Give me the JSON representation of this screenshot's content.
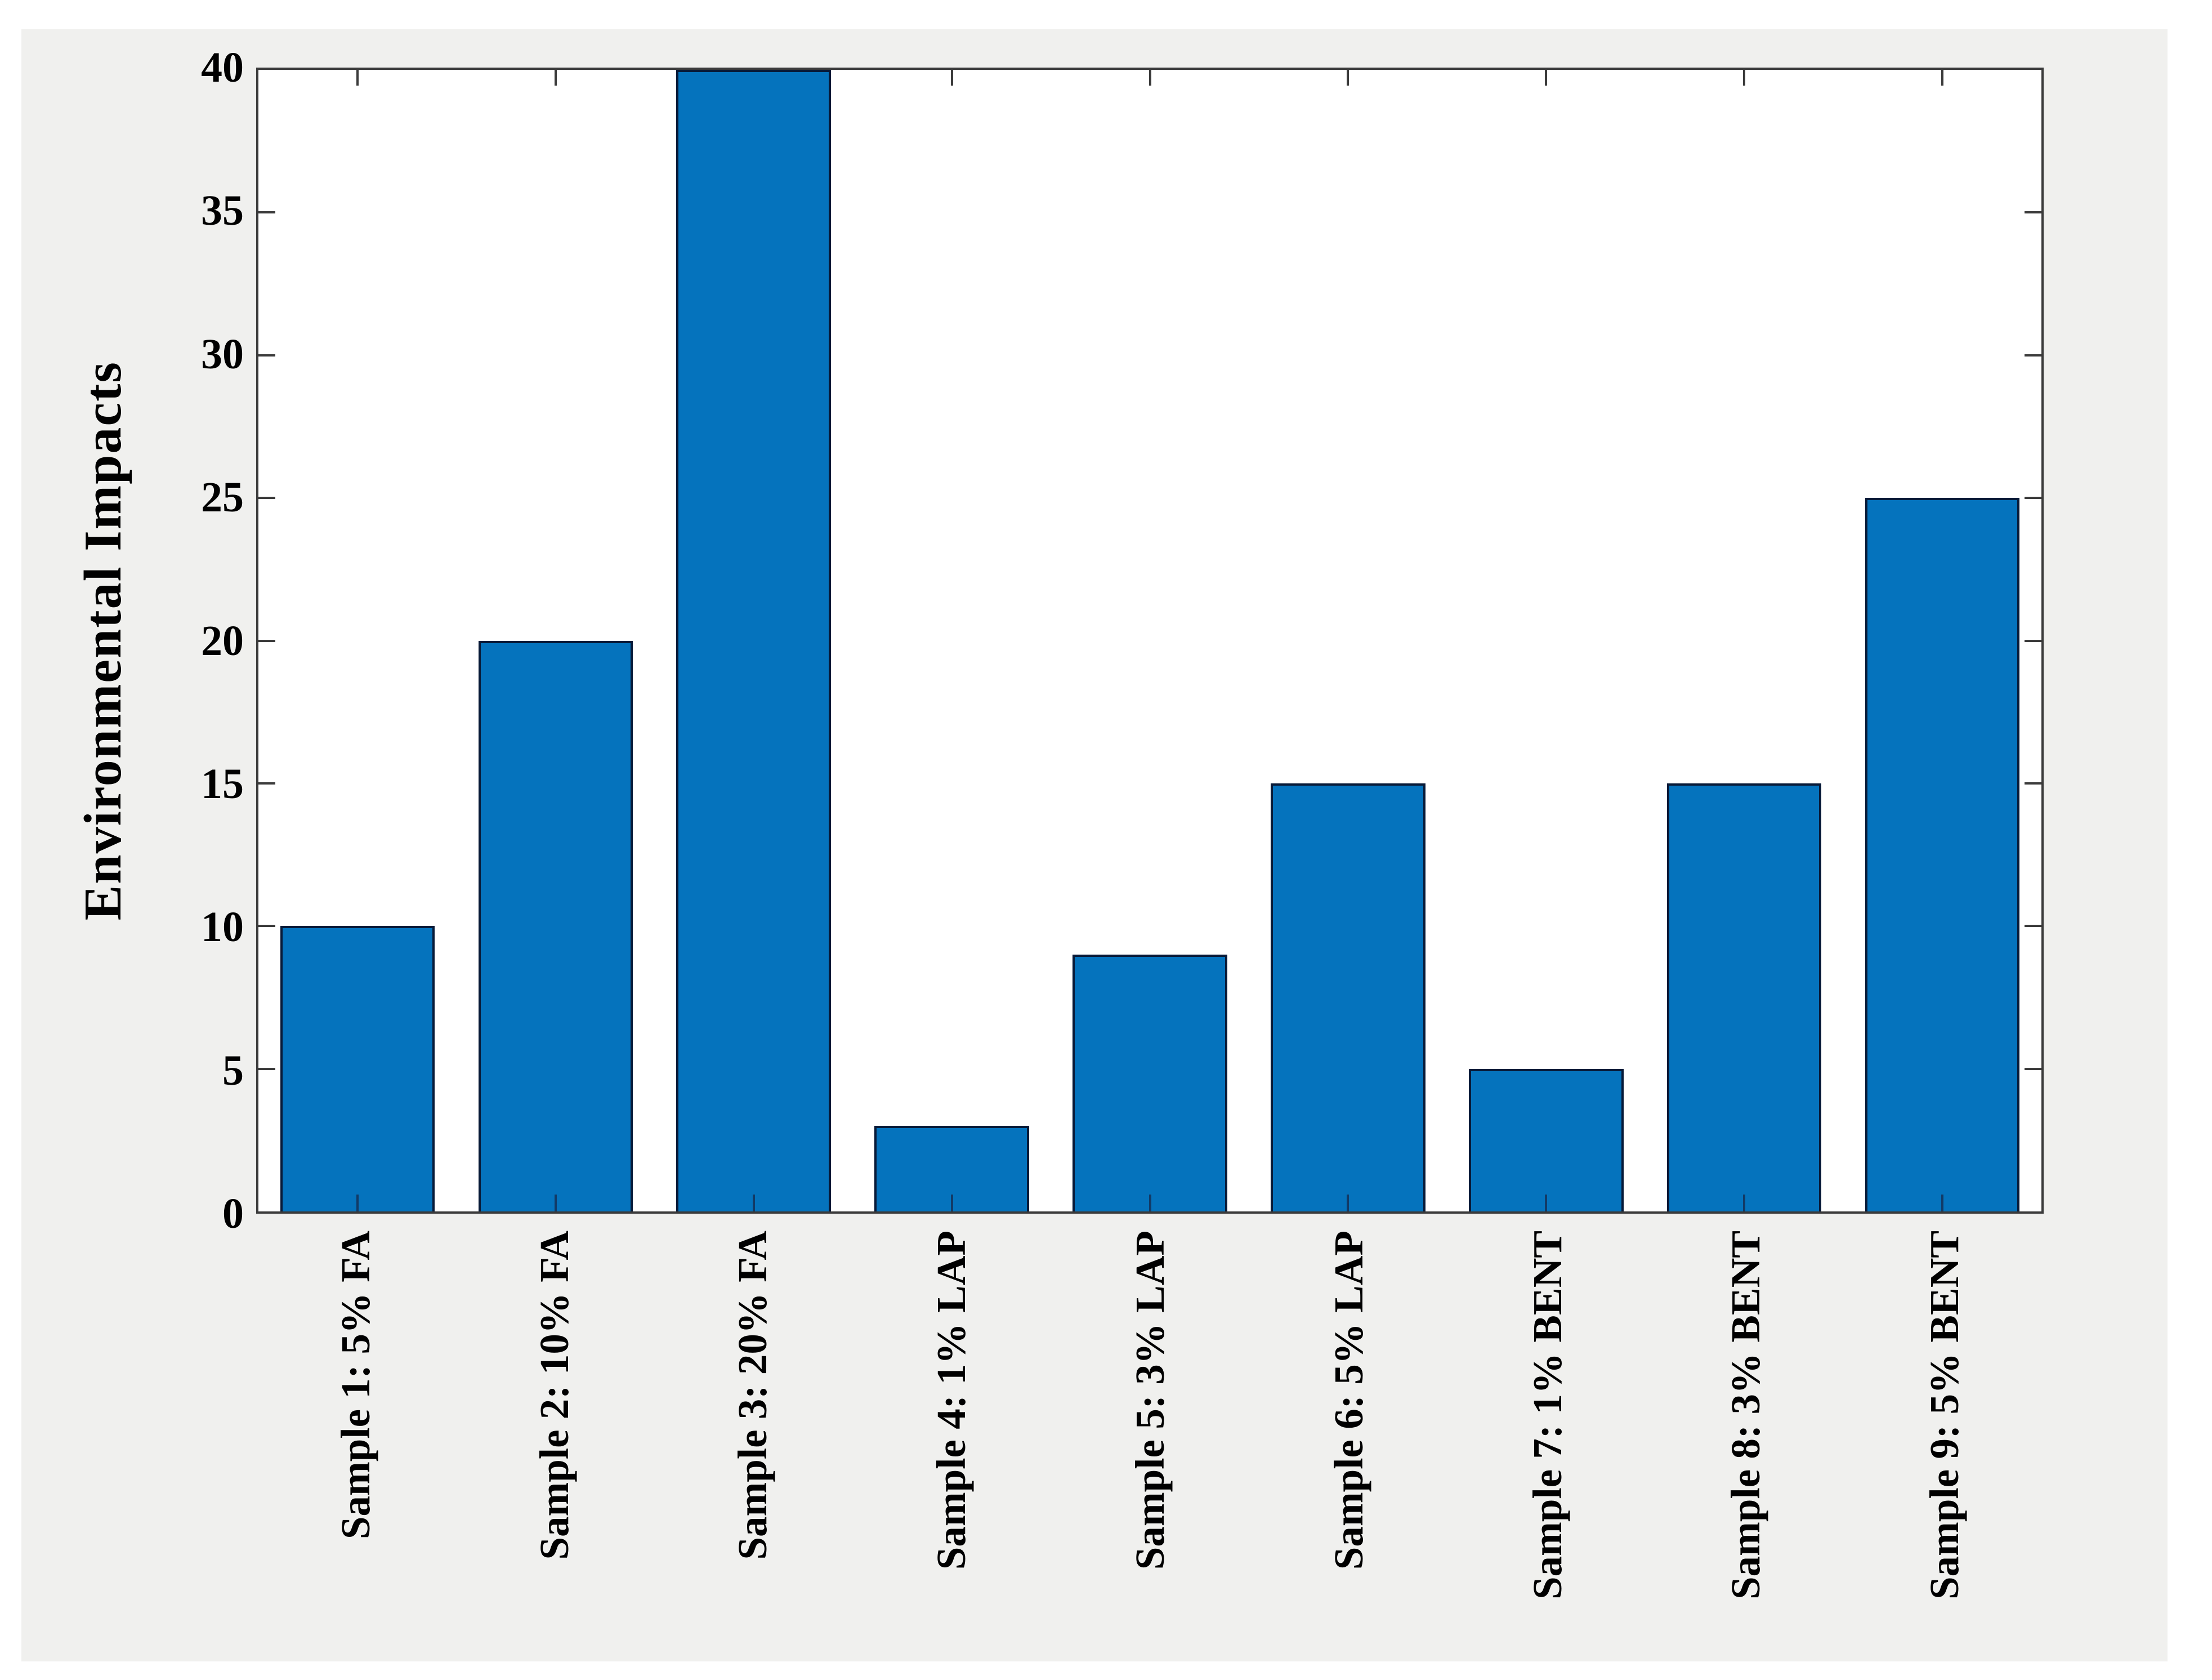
{
  "chart_data": {
    "type": "bar",
    "title": "",
    "xlabel": "",
    "ylabel": "Environmental Impacts",
    "categories": [
      "Sample 1: 5% FA",
      "Sample 2: 10% FA",
      "Sample 3: 20% FA",
      "Sample 4: 1% LAP",
      "Sample 5: 3% LAP",
      "Sample 6: 5% LAP",
      "Sample 7: 1% BENT",
      "Sample 8: 3% BENT",
      "Sample 9: 5% BENT"
    ],
    "values": [
      10,
      20,
      40,
      3,
      9,
      15,
      5,
      15,
      25
    ],
    "ylim": [
      0,
      40
    ],
    "yticks": [
      0,
      5,
      10,
      15,
      20,
      25,
      30,
      35,
      40
    ],
    "grid": false,
    "legend": "none",
    "bar_orientation": "vertical",
    "colors": {
      "bar_fill": "#0573bd",
      "bar_edge": "#081a38",
      "axis_line": "#3b3b3b",
      "figure_background": "#f0f0ee",
      "plot_background": "#ffffff",
      "text": "#000000"
    }
  }
}
